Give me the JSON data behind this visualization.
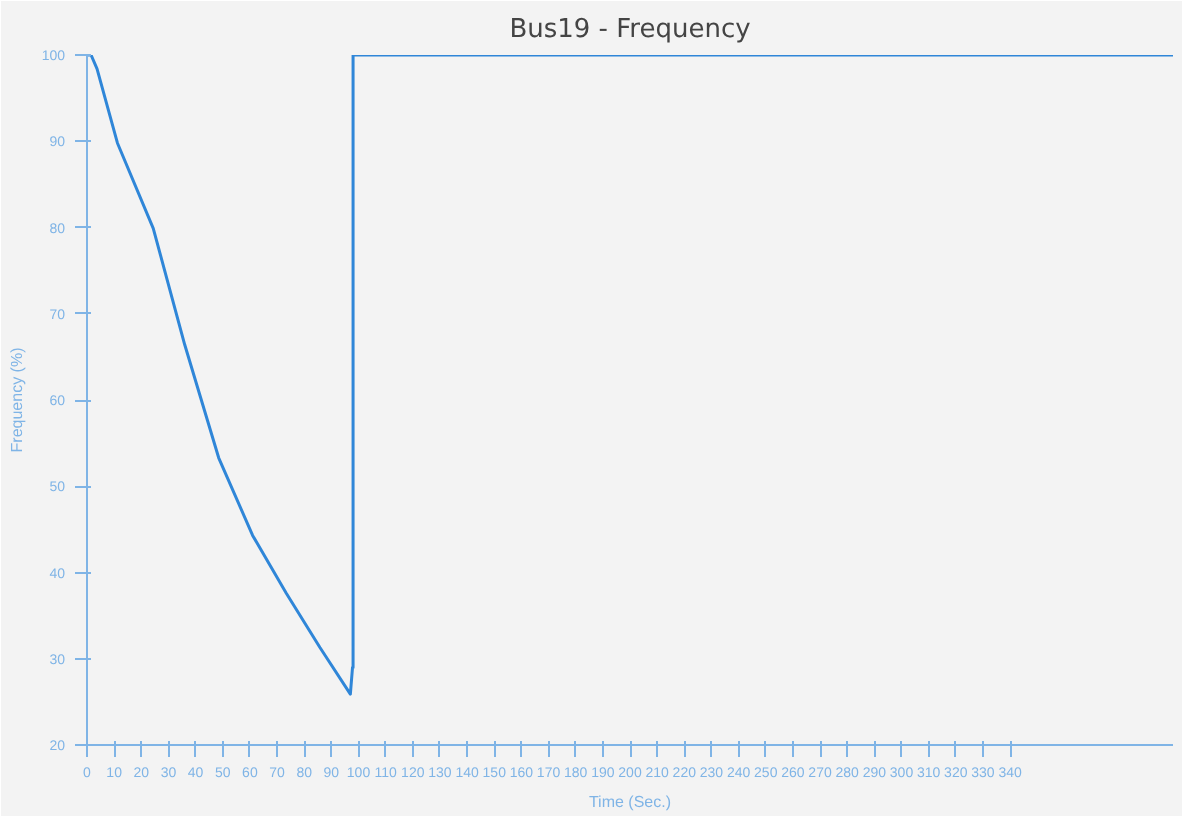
{
  "chart_data": {
    "type": "line",
    "title": "Bus19 - Frequency",
    "xlabel": "Time (Sec.)",
    "ylabel": "Frequency (%)",
    "x": [
      0,
      1.5,
      3.7,
      11.2,
      24.4,
      36,
      48.5,
      61,
      73.4,
      85.8,
      97,
      97.8,
      98,
      98,
      400
    ],
    "series": [
      {
        "color": "#2f86d8",
        "values": [
          100,
          100,
          98.4,
          89.8,
          79.9,
          66.4,
          53.3,
          44.3,
          37.6,
          31.3,
          25.9,
          29,
          29,
          100,
          100
        ]
      }
    ],
    "xlim": [
      0,
      400
    ],
    "ylim": [
      20,
      100
    ],
    "xticks": [
      0,
      10,
      20,
      30,
      40,
      50,
      60,
      70,
      80,
      90,
      100,
      110,
      120,
      130,
      140,
      150,
      160,
      170,
      180,
      190,
      200,
      210,
      220,
      230,
      240,
      250,
      260,
      270,
      280,
      290,
      300,
      310,
      320,
      330,
      340
    ],
    "yticks": [
      20,
      30,
      40,
      50,
      60,
      70,
      80,
      90,
      100
    ],
    "grid": false,
    "marker": "none",
    "line_style": "solid"
  }
}
